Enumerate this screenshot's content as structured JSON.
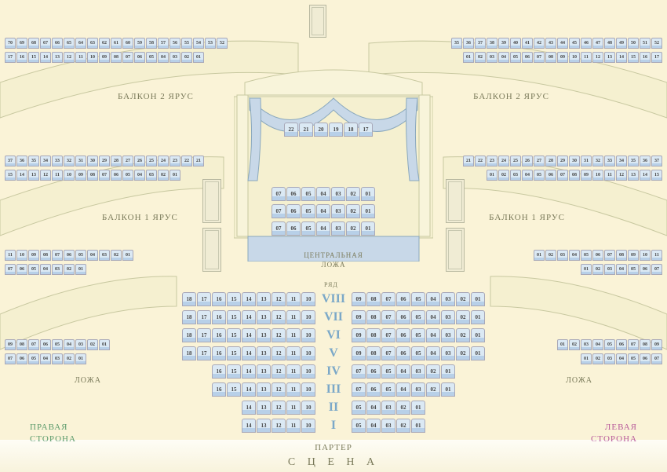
{
  "stage": "С Ц Е Н А",
  "sides": {
    "right": "ПРАВАЯ\nСТОРОНА",
    "left": "ЛЕВАЯ\nСТОРОНА"
  },
  "parterre": "ПАРТЕР",
  "row_label": "РЯД",
  "central_box": "ЦЕНТРАЛЬНАЯ\nЛОЖА",
  "sections": {
    "balcony2": "БАЛКОН\n2 ЯРУС",
    "balcony1": "БАЛКОН\n1 ЯРУС",
    "loge": "ЛОЖА"
  },
  "row_numerals": [
    "I",
    "II",
    "III",
    "IV",
    "V",
    "VI",
    "VII",
    "VIII"
  ],
  "colors": {
    "background": "#faf3d7",
    "seat_fill": "#dbe9f4",
    "seat_border": "#a8a8b8",
    "band_fill": "#f5f0d0",
    "band_border": "#c8c8a0",
    "label": "#7a7a5a",
    "row_num": "#7ba8c8",
    "right_side": "#b85a9a",
    "left_side": "#5a9a6a"
  },
  "balcony2_right_r1": [
    "70",
    "69",
    "68",
    "67",
    "66",
    "65",
    "64",
    "63",
    "62",
    "61",
    "60",
    "59",
    "58",
    "57",
    "56",
    "55",
    "54",
    "53",
    "52"
  ],
  "balcony2_right_r2": [
    "17",
    "16",
    "15",
    "14",
    "13",
    "12",
    "11",
    "10",
    "09",
    "08",
    "07",
    "06",
    "05",
    "04",
    "03",
    "02",
    "01"
  ],
  "balcony2_left_r1": [
    "52",
    "51",
    "50",
    "49",
    "48",
    "47",
    "46",
    "45",
    "44",
    "43",
    "42",
    "41",
    "40",
    "39",
    "38",
    "37",
    "36",
    "35"
  ],
  "balcony2_left_r2": [
    "17",
    "16",
    "15",
    "14",
    "13",
    "12",
    "11",
    "10",
    "09",
    "08",
    "07",
    "06",
    "05",
    "04",
    "03",
    "02",
    "01"
  ],
  "balcony2_center": [
    "22",
    "21",
    "20",
    "19",
    "18",
    "17"
  ],
  "balcony1_right_r1": [
    "37",
    "36",
    "35",
    "34",
    "33",
    "32",
    "31",
    "30",
    "29",
    "28",
    "27",
    "26",
    "25",
    "24",
    "23",
    "22",
    "21"
  ],
  "balcony1_right_r2": [
    "15",
    "14",
    "13",
    "12",
    "11",
    "10",
    "09",
    "08",
    "07",
    "06",
    "05",
    "04",
    "03",
    "02",
    "01"
  ],
  "balcony1_left_r1": [
    "37",
    "36",
    "35",
    "34",
    "33",
    "32",
    "31",
    "30",
    "29",
    "28",
    "27",
    "26",
    "25",
    "24",
    "23",
    "22",
    "21"
  ],
  "balcony1_left_r2": [
    "15",
    "14",
    "13",
    "12",
    "11",
    "10",
    "09",
    "08",
    "07",
    "06",
    "05",
    "04",
    "03",
    "02",
    "01"
  ],
  "loge_side_r1": [
    "11",
    "10",
    "09",
    "08",
    "07",
    "06",
    "05",
    "04",
    "03",
    "02",
    "01"
  ],
  "loge_side_r2": [
    "07",
    "06",
    "05",
    "04",
    "03",
    "02",
    "01"
  ],
  "central_r1": [
    "07",
    "06",
    "05",
    "04",
    "03",
    "02",
    "01"
  ],
  "central_r2": [
    "07",
    "06",
    "05",
    "04",
    "03",
    "02",
    "01"
  ],
  "central_r3": [
    "07",
    "06",
    "05",
    "04",
    "03",
    "02",
    "01"
  ],
  "parterre_rows_left": [
    [
      "18",
      "17",
      "16",
      "15",
      "14",
      "13",
      "12",
      "11",
      "10"
    ],
    [
      "18",
      "17",
      "16",
      "15",
      "14",
      "13",
      "12",
      "11",
      "10"
    ],
    [
      "18",
      "17",
      "16",
      "15",
      "14",
      "13",
      "12",
      "11",
      "10"
    ],
    [
      "18",
      "17",
      "16",
      "15",
      "14",
      "13",
      "12",
      "11",
      "10"
    ],
    [
      "16",
      "15",
      "14",
      "13",
      "12",
      "11",
      "10"
    ],
    [
      "16",
      "15",
      "14",
      "13",
      "12",
      "11",
      "10"
    ],
    [
      "14",
      "13",
      "12",
      "11",
      "10"
    ],
    [
      "14",
      "13",
      "12",
      "11",
      "10"
    ]
  ],
  "parterre_rows_right": [
    [
      "09",
      "08",
      "07",
      "06",
      "05",
      "04",
      "03",
      "02",
      "01"
    ],
    [
      "09",
      "08",
      "07",
      "06",
      "05",
      "04",
      "03",
      "02",
      "01"
    ],
    [
      "09",
      "08",
      "07",
      "06",
      "05",
      "04",
      "03",
      "02",
      "01"
    ],
    [
      "09",
      "08",
      "07",
      "06",
      "05",
      "04",
      "03",
      "02",
      "01"
    ],
    [
      "07",
      "06",
      "05",
      "04",
      "03",
      "02",
      "01"
    ],
    [
      "07",
      "06",
      "05",
      "04",
      "03",
      "02",
      "01"
    ],
    [
      "05",
      "04",
      "03",
      "02",
      "01"
    ],
    [
      "05",
      "04",
      "03",
      "02",
      "01"
    ]
  ],
  "loge_left_side": [
    "09",
    "08",
    "07",
    "06",
    "05",
    "04",
    "03",
    "02",
    "01"
  ],
  "loge_right_side": [
    "09",
    "08",
    "07",
    "06",
    "05",
    "04",
    "03",
    "02",
    "01"
  ]
}
